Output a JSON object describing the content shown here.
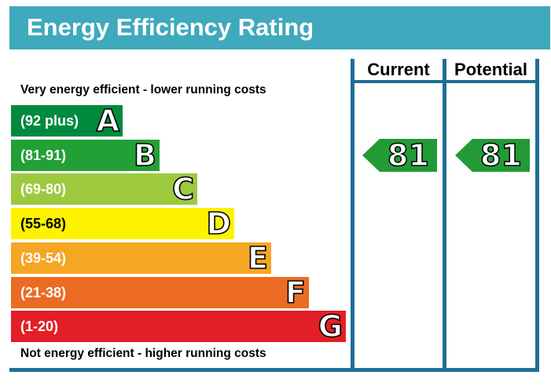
{
  "title": "Energy Efficiency Rating",
  "columns": {
    "current": "Current",
    "potential": "Potential"
  },
  "top_caption": "Very energy efficient - lower running costs",
  "bottom_caption": "Not energy efficient - higher running costs",
  "colors": {
    "header": "#3fa9bd",
    "frame": "#1f6f95",
    "arrow": "#229a36"
  },
  "chart_data": {
    "type": "bar",
    "categories": [
      "A",
      "B",
      "C",
      "D",
      "E",
      "F",
      "G"
    ],
    "bands": [
      {
        "letter": "A",
        "range": "(92 plus)",
        "color": "#008a3e"
      },
      {
        "letter": "B",
        "range": "(81-91)",
        "color": "#22a036"
      },
      {
        "letter": "C",
        "range": "(69-80)",
        "color": "#9dc93f"
      },
      {
        "letter": "D",
        "range": "(55-68)",
        "color": "#fff200"
      },
      {
        "letter": "E",
        "range": "(39-54)",
        "color": "#f5a623"
      },
      {
        "letter": "F",
        "range": "(21-38)",
        "color": "#ec6b23"
      },
      {
        "letter": "G",
        "range": "(1-20)",
        "color": "#e41e26"
      }
    ],
    "current": 81,
    "potential": 81
  }
}
